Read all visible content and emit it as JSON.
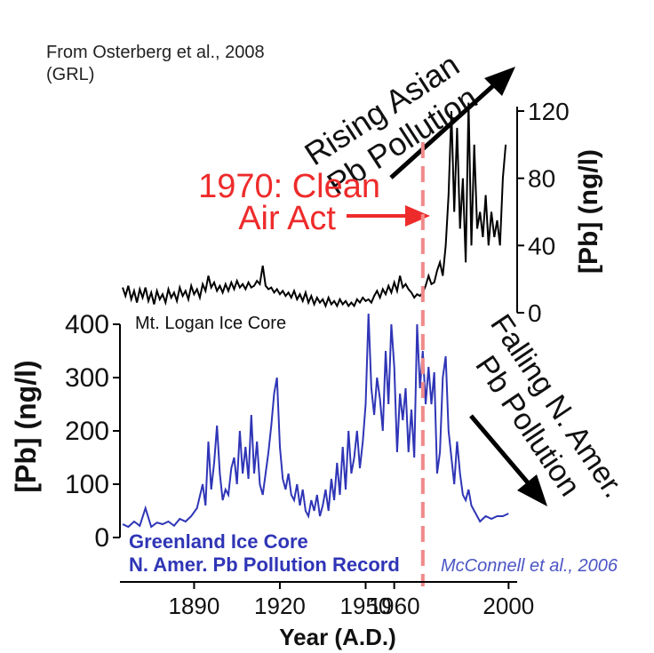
{
  "chart_data": {
    "type": "line",
    "source_top": [
      "From Osterberg et al., 2008",
      "(GRL)"
    ],
    "source_bottom": "McConnell et al., 2006",
    "xlabel": "Year (A.D.)",
    "xlim": [
      1865,
      2003
    ],
    "xticks": [
      "1890",
      "1920",
      "1950",
      "1960",
      "2000"
    ],
    "xtick_values": [
      1890,
      1920,
      1950,
      1960,
      2000
    ],
    "colors": {
      "mt_logan": "#000000",
      "greenland": "#2f35b6",
      "event": "#ee2b2b",
      "event_line": "#f08a8a",
      "source_bottom": "#4b55c5"
    },
    "annotations": {
      "asian": [
        "Rising Asian",
        "Pb Pollution"
      ],
      "clean_air": [
        "1970: Clean",
        "Air Act"
      ],
      "falling": [
        "Falling N. Amer.",
        "Pb Pollution"
      ],
      "event_year": 1970
    },
    "series": [
      {
        "name": "Mt. Logan Ice Core",
        "ylabel": "[Pb] (ng/l)",
        "ylim": [
          0,
          120
        ],
        "yticks": [
          "0",
          "40",
          "80",
          "120"
        ],
        "ytick_values": [
          0,
          40,
          80,
          120
        ],
        "x": [
          1865,
          1866,
          1867,
          1868,
          1869,
          1870,
          1871,
          1872,
          1873,
          1874,
          1875,
          1876,
          1877,
          1878,
          1879,
          1880,
          1881,
          1882,
          1883,
          1884,
          1885,
          1886,
          1887,
          1888,
          1889,
          1890,
          1891,
          1892,
          1893,
          1894,
          1895,
          1896,
          1897,
          1898,
          1899,
          1900,
          1901,
          1902,
          1903,
          1904,
          1905,
          1906,
          1907,
          1908,
          1909,
          1910,
          1911,
          1912,
          1913,
          1914,
          1915,
          1916,
          1917,
          1918,
          1919,
          1920,
          1921,
          1922,
          1923,
          1924,
          1925,
          1926,
          1927,
          1928,
          1929,
          1930,
          1931,
          1932,
          1933,
          1934,
          1935,
          1936,
          1937,
          1938,
          1939,
          1940,
          1941,
          1942,
          1943,
          1944,
          1945,
          1946,
          1947,
          1948,
          1949,
          1950,
          1951,
          1952,
          1953,
          1954,
          1955,
          1956,
          1957,
          1958,
          1959,
          1960,
          1961,
          1962,
          1963,
          1964,
          1965,
          1966,
          1967,
          1968,
          1969,
          1970,
          1971,
          1972,
          1973,
          1974,
          1975,
          1976,
          1977,
          1978,
          1979,
          1980,
          1981,
          1982,
          1983,
          1984,
          1985,
          1986,
          1987,
          1988,
          1989,
          1990,
          1991,
          1992,
          1993,
          1994,
          1995,
          1996,
          1997,
          1998,
          1999
        ],
        "values": [
          15,
          10,
          16,
          8,
          13,
          6,
          14,
          9,
          15,
          7,
          12,
          5,
          13,
          8,
          11,
          6,
          14,
          9,
          12,
          7,
          15,
          10,
          13,
          8,
          16,
          11,
          14,
          9,
          17,
          13,
          22,
          15,
          18,
          13,
          16,
          12,
          17,
          13,
          18,
          14,
          19,
          15,
          17,
          14,
          18,
          15,
          16,
          19,
          17,
          28,
          16,
          14,
          15,
          12,
          14,
          11,
          13,
          10,
          12,
          9,
          13,
          8,
          11,
          7,
          12,
          6,
          10,
          5,
          9,
          6,
          8,
          4,
          9,
          5,
          7,
          4,
          8,
          5,
          7,
          4,
          6,
          4,
          8,
          6,
          9,
          7,
          8,
          6,
          10,
          13,
          9,
          14,
          11,
          16,
          12,
          18,
          13,
          22,
          15,
          17,
          14,
          12,
          9,
          11,
          10,
          12,
          16,
          22,
          17,
          18,
          25,
          30,
          22,
          40,
          70,
          120,
          60,
          110,
          50,
          80,
          30,
          125,
          40,
          100,
          50,
          60,
          45,
          70,
          40,
          60,
          45,
          55,
          40,
          80,
          100
        ],
        "label": "Mt. Logan Ice Core"
      },
      {
        "name": "Greenland Ice Core",
        "label": [
          "Greenland Ice Core",
          "N. Amer. Pb Pollution Record"
        ],
        "ylabel": "[Pb] (ng/l)",
        "ylim": [
          0,
          400
        ],
        "yticks": [
          "0",
          "100",
          "200",
          "300",
          "400"
        ],
        "ytick_values": [
          0,
          100,
          200,
          300,
          400
        ],
        "x": [
          1865,
          1867,
          1869,
          1871,
          1873,
          1875,
          1877,
          1879,
          1881,
          1883,
          1885,
          1887,
          1889,
          1891,
          1893,
          1894,
          1895,
          1896,
          1897,
          1898,
          1899,
          1900,
          1901,
          1902,
          1903,
          1904,
          1905,
          1906,
          1907,
          1908,
          1909,
          1910,
          1911,
          1912,
          1913,
          1914,
          1915,
          1916,
          1917,
          1918,
          1919,
          1920,
          1921,
          1922,
          1923,
          1924,
          1925,
          1926,
          1927,
          1928,
          1929,
          1930,
          1931,
          1932,
          1933,
          1934,
          1935,
          1936,
          1937,
          1938,
          1939,
          1940,
          1941,
          1942,
          1943,
          1944,
          1945,
          1946,
          1947,
          1948,
          1949,
          1950,
          1951,
          1952,
          1953,
          1954,
          1955,
          1956,
          1957,
          1958,
          1959,
          1960,
          1961,
          1962,
          1963,
          1964,
          1965,
          1966,
          1967,
          1968,
          1969,
          1970,
          1971,
          1972,
          1973,
          1974,
          1975,
          1976,
          1977,
          1978,
          1979,
          1980,
          1981,
          1982,
          1983,
          1984,
          1985,
          1986,
          1987,
          1988,
          1989,
          1990,
          1992,
          1994,
          1996,
          1998,
          2000
        ],
        "values": [
          25,
          20,
          30,
          22,
          55,
          20,
          28,
          25,
          30,
          22,
          35,
          30,
          40,
          55,
          100,
          60,
          180,
          90,
          140,
          210,
          120,
          70,
          90,
          80,
          130,
          150,
          100,
          200,
          120,
          170,
          110,
          230,
          120,
          180,
          100,
          80,
          120,
          160,
          210,
          270,
          300,
          170,
          110,
          90,
          120,
          80,
          70,
          100,
          60,
          90,
          50,
          40,
          70,
          50,
          80,
          40,
          60,
          90,
          50,
          110,
          70,
          140,
          80,
          170,
          90,
          200,
          120,
          150,
          200,
          130,
          180,
          250,
          420,
          280,
          230,
          300,
          260,
          200,
          350,
          250,
          400,
          320,
          160,
          270,
          220,
          280,
          160,
          240,
          150,
          400,
          280,
          350,
          250,
          320,
          250,
          310,
          120,
          160,
          300,
          340,
          200,
          150,
          100,
          180,
          120,
          80,
          70,
          90,
          60,
          50,
          40,
          30,
          40,
          35,
          40,
          40,
          45
        ],
        "values_note": ""
      }
    ]
  }
}
